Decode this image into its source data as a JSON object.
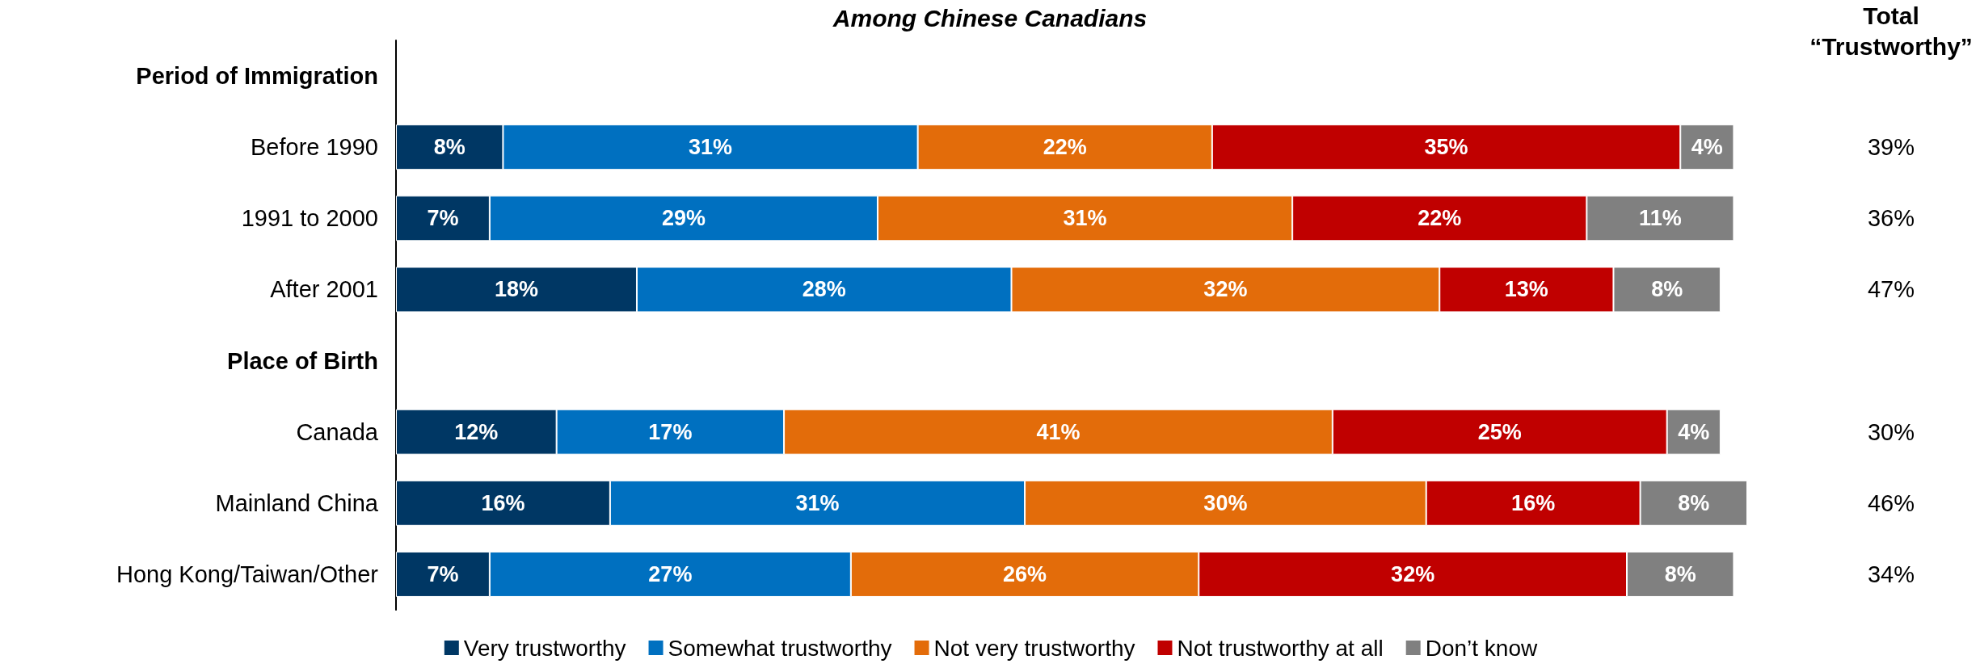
{
  "chart_data": {
    "type": "bar",
    "orientation": "horizontal",
    "stacked": true,
    "legend": "bottom",
    "grid": false,
    "title": "Among Chinese Canadians",
    "categories": [
      "Period of Immigration",
      "Before 1990",
      "1991 to 2000",
      "After 2001",
      "Place of Birth",
      "Canada",
      "Mainland China",
      "Hong Kong/Taiwan/Other"
    ],
    "series": [
      {
        "name": "Very trustworthy",
        "color": "#003764",
        "values": [
          null,
          8,
          7,
          18,
          null,
          12,
          16,
          7
        ],
        "value_labels": [
          null,
          "8%",
          "7%",
          "18%",
          null,
          "12%",
          "16%",
          "7%"
        ]
      },
      {
        "name": "Somewhat trustworthy",
        "color": "#0070c0",
        "values": [
          null,
          31,
          29,
          28,
          null,
          17,
          31,
          27
        ],
        "value_labels": [
          null,
          "31%",
          "29%",
          "28%",
          null,
          "17%",
          "31%",
          "27%"
        ]
      },
      {
        "name": "Not very trustworthy",
        "color": "#e36c0a",
        "values": [
          null,
          22,
          31,
          32,
          null,
          41,
          30,
          26
        ],
        "value_labels": [
          null,
          "22%",
          "31%",
          "32%",
          null,
          "41%",
          "30%",
          "26%"
        ]
      },
      {
        "name": "Not trustworthy at all",
        "color": "#c00000",
        "values": [
          null,
          35,
          22,
          13,
          null,
          25,
          16,
          32
        ],
        "value_labels": [
          null,
          "35%",
          "22%",
          "13%",
          null,
          "25%",
          "16%",
          "32%"
        ]
      },
      {
        "name": "Don’t know",
        "color": "#808080",
        "values": [
          null,
          4,
          11,
          8,
          null,
          4,
          8,
          8
        ],
        "value_labels": [
          null,
          "4%",
          "11%",
          "8%",
          null,
          "4%",
          "8%",
          "8%"
        ]
      }
    ],
    "annotations": [
      "Total\n“Trustworthy”",
      "39%",
      "36%",
      "47%",
      "30%",
      "46%",
      "34%"
    ]
  }
}
